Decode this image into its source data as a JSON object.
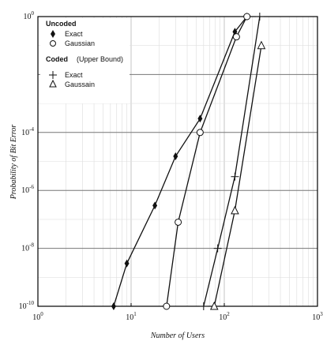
{
  "chart_data": {
    "type": "line",
    "xlabel": "Number of Users",
    "ylabel": "Probability of Bit Error",
    "x_scale": "log",
    "y_scale": "log",
    "xlim": [
      1,
      1000
    ],
    "ylim": [
      1e-10,
      1
    ],
    "x_ticks": [
      {
        "v": 1,
        "b": "10",
        "e": "0"
      },
      {
        "v": 10,
        "b": "10",
        "e": "1"
      },
      {
        "v": 100,
        "b": "10",
        "e": "2"
      },
      {
        "v": 1000,
        "b": "10",
        "e": "3"
      }
    ],
    "y_ticks": [
      {
        "v": 1,
        "b": "10",
        "e": "0"
      },
      {
        "v": 0.0001,
        "b": "10",
        "e": "-4"
      },
      {
        "v": 1e-06,
        "b": "10",
        "e": "-6"
      },
      {
        "v": 1e-08,
        "b": "10",
        "e": "-8"
      },
      {
        "v": 1e-10,
        "b": "10",
        "e": "-10"
      }
    ],
    "grid": true,
    "legend": {
      "position": "top-left",
      "groups": [
        {
          "title": "Uncoded",
          "items": [
            {
              "label": "Exact",
              "marker": "diamond"
            },
            {
              "label": "Gaussian",
              "marker": "circle"
            }
          ]
        },
        {
          "title": "Coded",
          "subtitle": "(Upper Bound)",
          "items": [
            {
              "label": "Exact",
              "marker": "plus"
            },
            {
              "label": "Gaussain",
              "marker": "triangle"
            }
          ]
        }
      ]
    },
    "series": [
      {
        "name": "Uncoded Exact",
        "marker": "diamond",
        "points": [
          [
            6.5,
            1e-10
          ],
          [
            9,
            3e-09
          ],
          [
            18,
            3e-07
          ],
          [
            30,
            1.5e-05
          ],
          [
            55,
            0.0003
          ],
          [
            130,
            0.3
          ],
          [
            175,
            1
          ]
        ]
      },
      {
        "name": "Uncoded Gaussian",
        "marker": "circle",
        "points": [
          [
            24,
            1e-10
          ],
          [
            32,
            8e-08
          ],
          [
            55,
            0.0001
          ],
          [
            135,
            0.2
          ],
          [
            175,
            1
          ]
        ]
      },
      {
        "name": "Coded Exact",
        "marker": "plus",
        "points": [
          [
            60,
            1e-10
          ],
          [
            85,
            1e-08
          ],
          [
            130,
            3e-06
          ],
          [
            240,
            1
          ]
        ]
      },
      {
        "name": "Coded Gaussain",
        "marker": "triangle",
        "points": [
          [
            78,
            1e-10
          ],
          [
            130,
            2e-07
          ],
          [
            250,
            0.1
          ]
        ]
      }
    ]
  }
}
